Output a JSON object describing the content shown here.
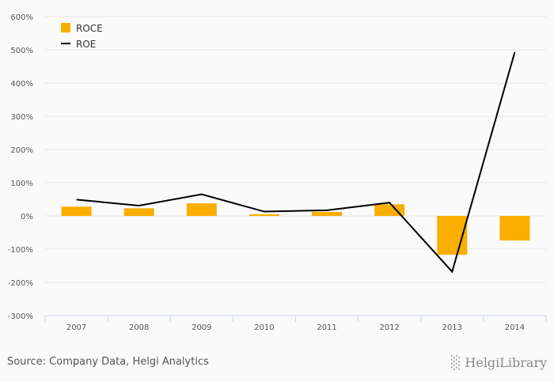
{
  "chart_data": {
    "type": "bar",
    "title": "",
    "xlabel": "",
    "ylabel": "",
    "categories": [
      "2007",
      "2008",
      "2009",
      "2010",
      "2011",
      "2012",
      "2013",
      "2014"
    ],
    "series": [
      {
        "name": "ROCE",
        "type": "bar",
        "color": "#f9ae00",
        "values": [
          28,
          23,
          38,
          5,
          12,
          35,
          -117,
          -74
        ]
      },
      {
        "name": "ROE",
        "type": "line",
        "color": "#000000",
        "values": [
          49,
          31,
          65,
          13,
          17,
          40,
          -168,
          493
        ]
      }
    ],
    "ylim": [
      -300,
      600
    ],
    "yticks": [
      600,
      500,
      400,
      300,
      200,
      100,
      0,
      -100,
      -200,
      -300
    ],
    "ytick_labels": [
      "600%",
      "500%",
      "400%",
      "300%",
      "200%",
      "100%",
      "0%",
      "-100%",
      "-200%",
      "-300%"
    ],
    "grid": true,
    "legend": "top-left"
  },
  "footer": {
    "source": "Source: Company Data, Helgi Analytics",
    "logo": "HelgiLibrary"
  }
}
